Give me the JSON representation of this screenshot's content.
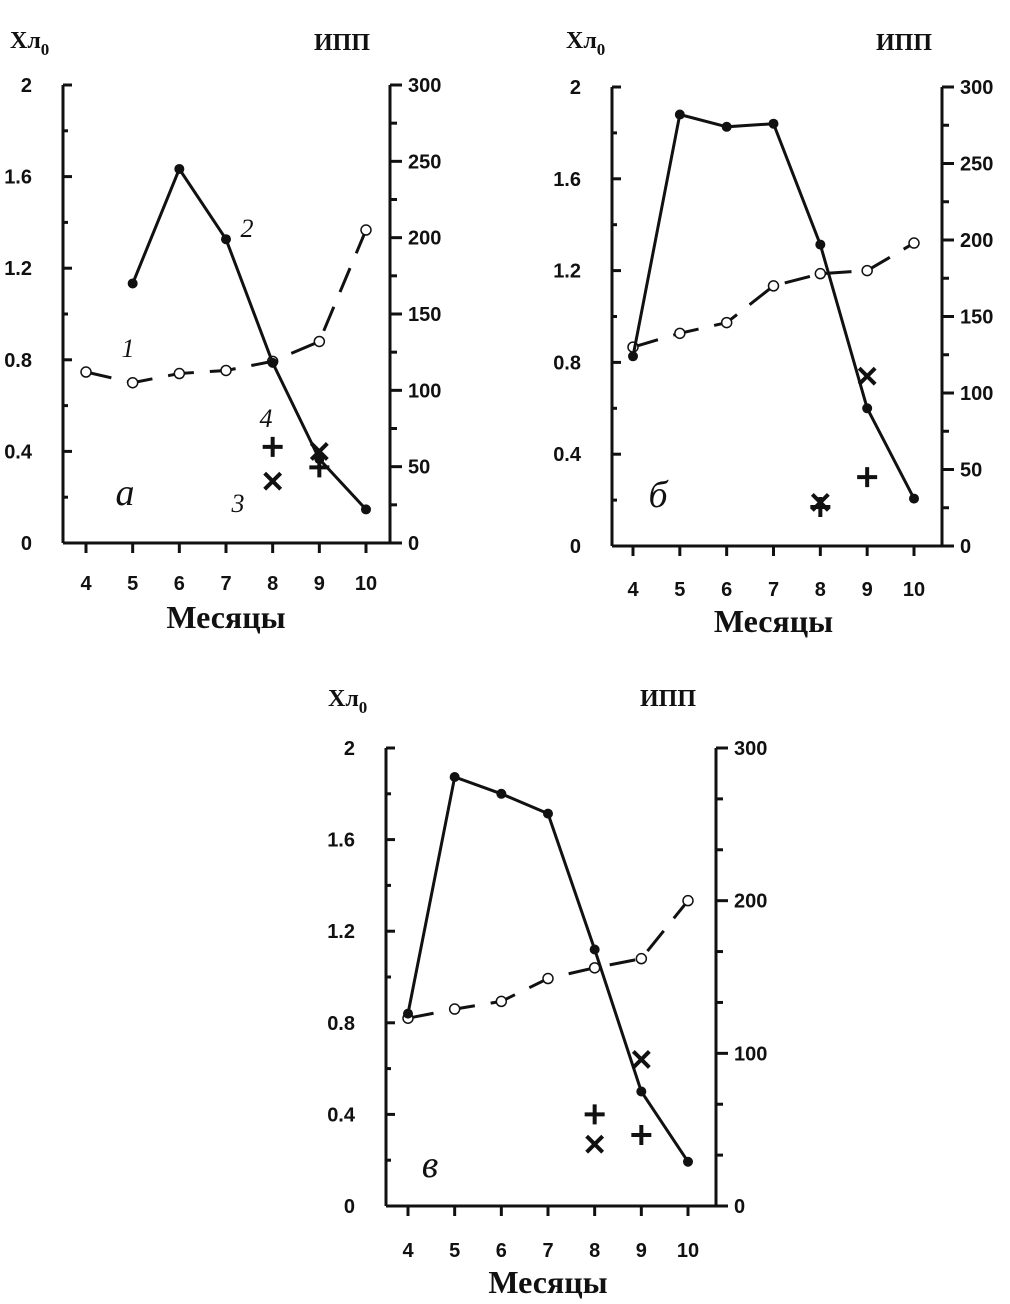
{
  "chart_data": [
    {
      "type": "line",
      "panel_label": "а",
      "left_axis_title": "Хл",
      "left_axis_subscript": "0",
      "right_axis_title": "ИПП",
      "xlabel": "Месяцы",
      "x": [
        4,
        5,
        6,
        7,
        8,
        9,
        10
      ],
      "x_ticks": [
        "4",
        "5",
        "6",
        "7",
        "8",
        "9",
        "10"
      ],
      "left_ylim": [
        0,
        2
      ],
      "left_ticks": [
        "0",
        "0.4",
        "0.8",
        "1.2",
        "1.6",
        "2"
      ],
      "right_ylim": [
        0,
        300
      ],
      "right_ticks": [
        "0",
        "50",
        "100",
        "150",
        "200",
        "250",
        "300"
      ],
      "series": [
        {
          "label": "1",
          "axis": "right",
          "style": "dashed-open-circle",
          "x": [
            4,
            5,
            6,
            7,
            8,
            9,
            10
          ],
          "values": [
            112,
            105,
            111,
            113,
            119,
            132,
            205
          ]
        },
        {
          "label": "2",
          "axis": "right",
          "style": "solid-filled-circle",
          "x": [
            5,
            6,
            7,
            8,
            9,
            10
          ],
          "values": [
            170,
            245,
            199,
            118,
            55,
            22
          ]
        },
        {
          "label": "3",
          "axis": "left",
          "style": "cross-x",
          "x": [
            8,
            9
          ],
          "values": [
            0.27,
            0.4
          ]
        },
        {
          "label": "4",
          "axis": "left",
          "style": "plus",
          "x": [
            8,
            9
          ],
          "values": [
            0.42,
            0.33
          ]
        }
      ],
      "annotations": [
        "1",
        "2",
        "3",
        "4"
      ]
    },
    {
      "type": "line",
      "panel_label": "б",
      "left_axis_title": "Хл",
      "left_axis_subscript": "0",
      "right_axis_title": "ИПП",
      "xlabel": "Месяцы",
      "x": [
        4,
        5,
        6,
        7,
        8,
        9,
        10
      ],
      "x_ticks": [
        "4",
        "5",
        "6",
        "7",
        "8",
        "9",
        "10"
      ],
      "left_ylim": [
        0,
        2
      ],
      "left_ticks": [
        "0",
        "0.4",
        "0.8",
        "1.2",
        "1.6",
        "2"
      ],
      "right_ylim": [
        0,
        300
      ],
      "right_ticks": [
        "0",
        "50",
        "100",
        "150",
        "200",
        "250",
        "300"
      ],
      "series": [
        {
          "axis": "right",
          "style": "dashed-open-circle",
          "x": [
            4,
            5,
            6,
            7,
            8,
            9,
            10
          ],
          "values": [
            130,
            139,
            146,
            170,
            178,
            180,
            198
          ]
        },
        {
          "axis": "right",
          "style": "solid-filled-circle",
          "x": [
            4,
            5,
            6,
            7,
            8,
            9,
            10
          ],
          "values": [
            124,
            282,
            274,
            276,
            197,
            90,
            31
          ]
        },
        {
          "axis": "left",
          "style": "cross-x",
          "x": [
            8,
            9
          ],
          "values": [
            0.19,
            0.74
          ]
        },
        {
          "axis": "left",
          "style": "plus",
          "x": [
            8,
            9
          ],
          "values": [
            0.17,
            0.3
          ]
        }
      ]
    },
    {
      "type": "line",
      "panel_label": "в",
      "left_axis_title": "Хл",
      "left_axis_subscript": "0",
      "right_axis_title": "ИПП",
      "xlabel": "Месяцы",
      "x": [
        4,
        5,
        6,
        7,
        8,
        9,
        10
      ],
      "x_ticks": [
        "4",
        "5",
        "6",
        "7",
        "8",
        "9",
        "10"
      ],
      "left_ylim": [
        0,
        2
      ],
      "left_ticks": [
        "0",
        "0.4",
        "0.8",
        "1.2",
        "1.6",
        "2"
      ],
      "right_ylim": [
        0,
        300
      ],
      "right_ticks": [
        "0",
        "100",
        "200",
        "300"
      ],
      "series": [
        {
          "axis": "right",
          "style": "dashed-open-circle",
          "x": [
            4,
            5,
            6,
            7,
            8,
            9,
            10
          ],
          "values": [
            123,
            129,
            134,
            149,
            156,
            162,
            200
          ]
        },
        {
          "axis": "right",
          "style": "solid-filled-circle",
          "x": [
            4,
            5,
            6,
            7,
            8,
            9,
            10
          ],
          "values": [
            126,
            281,
            270,
            257,
            168,
            75,
            29
          ]
        },
        {
          "axis": "left",
          "style": "cross-x",
          "x": [
            8,
            9
          ],
          "values": [
            0.27,
            0.64
          ]
        },
        {
          "axis": "left",
          "style": "plus",
          "x": [
            8,
            9
          ],
          "values": [
            0.4,
            0.31
          ]
        }
      ]
    }
  ]
}
